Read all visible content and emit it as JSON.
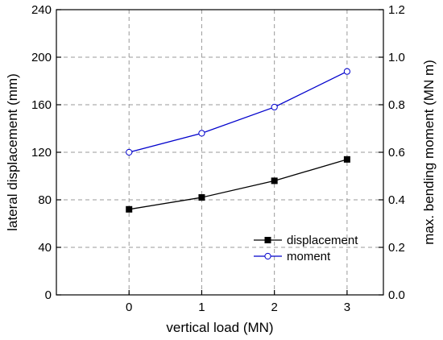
{
  "chart_data": {
    "type": "line",
    "xlabel": "vertical load (MN)",
    "ylabel_left": "lateral displacement (mm)",
    "ylabel_right": "max. bending moment (MN m)",
    "x": [
      0,
      1,
      2,
      3
    ],
    "x_ticks": [
      "0",
      "1",
      "2",
      "3"
    ],
    "xlim": [
      -1.0,
      3.5
    ],
    "ylim_left": [
      0,
      240
    ],
    "y_ticks_left": [
      "0",
      "40",
      "80",
      "120",
      "160",
      "200",
      "240"
    ],
    "ylim_right": [
      0.0,
      1.2
    ],
    "y_ticks_right": [
      "0.0",
      "0.2",
      "0.4",
      "0.6",
      "0.8",
      "1.0",
      "1.2"
    ],
    "grid": true,
    "legend_position": "lower-right",
    "series": [
      {
        "name": "displacement",
        "axis": "left",
        "values": [
          72,
          82,
          96,
          114
        ],
        "color": "#000000",
        "marker": "filled-square"
      },
      {
        "name": "moment",
        "axis": "right",
        "values": [
          0.6,
          0.68,
          0.79,
          0.94
        ],
        "color": "#0000cc",
        "marker": "open-circle"
      }
    ]
  }
}
